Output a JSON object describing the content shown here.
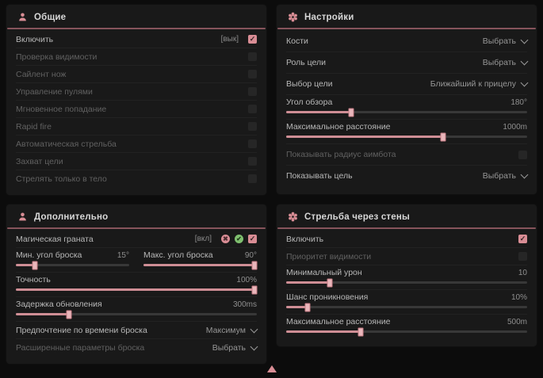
{
  "colors": {
    "accent": "#d98d95",
    "green": "#7fbf6f",
    "panel": "#191919",
    "header_line": "#86545b"
  },
  "cursor": {
    "name": "cursor-pointer"
  },
  "panels": [
    {
      "title": "Общие",
      "icon": "person-icon",
      "rows": [
        {
          "type": "toggle",
          "label": "Включить",
          "suffix": "[вык]",
          "checked": true,
          "enabled": true
        },
        {
          "type": "toggle",
          "label": "Проверка видимости",
          "checked": false,
          "enabled": false
        },
        {
          "type": "toggle",
          "label": "Сайлент нож",
          "checked": false,
          "enabled": false
        },
        {
          "type": "toggle",
          "label": "Управление пулями",
          "checked": false,
          "enabled": false
        },
        {
          "type": "toggle",
          "label": "Мгновенное попадание",
          "checked": false,
          "enabled": false
        },
        {
          "type": "toggle",
          "label": "Rapid fire",
          "checked": false,
          "enabled": false
        },
        {
          "type": "toggle",
          "label": "Автоматическая стрельба",
          "checked": false,
          "enabled": false
        },
        {
          "type": "toggle",
          "label": "Захват цели",
          "checked": false,
          "enabled": false
        },
        {
          "type": "toggle",
          "label": "Стрелять только в тело",
          "checked": false,
          "enabled": false
        }
      ]
    },
    {
      "title": "Настройки",
      "icon": "gear-icon",
      "rows": [
        {
          "type": "select",
          "label": "Кости",
          "value": "Выбрать",
          "enabled": true
        },
        {
          "type": "select",
          "label": "Роль цели",
          "value": "Выбрать",
          "enabled": true
        },
        {
          "type": "select",
          "label": "Выбор цели",
          "value": "Ближайший к прицелу",
          "enabled": true
        },
        {
          "type": "slider",
          "label": "Угол обзора",
          "value": "180°",
          "percent": 27,
          "enabled": true
        },
        {
          "type": "slider",
          "label": "Максимальное расстояние",
          "value": "1000m",
          "percent": 65,
          "enabled": true
        },
        {
          "type": "toggle",
          "label": "Показывать радиус аимбота",
          "checked": false,
          "enabled": false
        },
        {
          "type": "select",
          "label": "Показывать цель",
          "value": "Выбрать",
          "enabled": true
        }
      ]
    },
    {
      "title": "Дополнительно",
      "icon": "person-icon",
      "rows": [
        {
          "type": "toggle",
          "label": "Магическая граната",
          "suffix": "[вкл]",
          "checked": true,
          "enabled": true,
          "icons": [
            "heart-icon",
            "refresh-icon"
          ]
        },
        {
          "type": "slider-pair",
          "items": [
            {
              "label": "Мин. угол броска",
              "value": "15°",
              "percent": 17
            },
            {
              "label": "Макс. угол броска",
              "value": "90°",
              "percent": 98
            }
          ]
        },
        {
          "type": "slider",
          "label": "Точность",
          "value": "100%",
          "percent": 99,
          "enabled": true
        },
        {
          "type": "slider",
          "label": "Задержка обновления",
          "value": "300ms",
          "percent": 22,
          "enabled": true
        },
        {
          "type": "select",
          "label": "Предпочтение по времени броска",
          "value": "Максимум",
          "enabled": true
        },
        {
          "type": "select",
          "label": "Расширенные параметры броска",
          "value": "Выбрать",
          "enabled": false
        }
      ]
    },
    {
      "title": "Стрельба через стены",
      "icon": "gear-icon",
      "rows": [
        {
          "type": "toggle",
          "label": "Включить",
          "checked": true,
          "enabled": true
        },
        {
          "type": "toggle",
          "label": "Приоритет видимости",
          "checked": false,
          "enabled": false
        },
        {
          "type": "slider",
          "label": "Минимальный урон",
          "value": "10",
          "percent": 18,
          "enabled": true
        },
        {
          "type": "slider",
          "label": "Шанс проникновения",
          "value": "10%",
          "percent": 9,
          "enabled": true
        },
        {
          "type": "slider",
          "label": "Максимальное расстояние",
          "value": "500m",
          "percent": 31,
          "enabled": true
        }
      ]
    }
  ]
}
